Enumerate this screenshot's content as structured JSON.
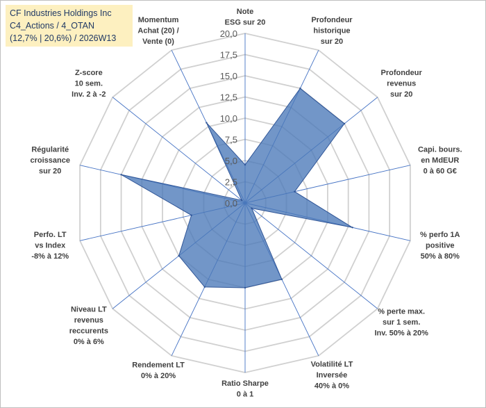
{
  "title": {
    "line1": "CF Industries Holdings Inc",
    "line2": "C4_Actions / 4_OTAN",
    "line3": "(12,7% | 20,6%) / 2026W13"
  },
  "colors": {
    "grid": "#d0d0d0",
    "spoke": "#4472c4",
    "fill": "#4a78b8",
    "stroke": "#2f5597",
    "label": "#404040"
  },
  "chart_data": {
    "type": "radar",
    "rmin": 0,
    "rmax": 20,
    "tick_step": 2.5,
    "tick_labels": [
      "0,0",
      "2,5",
      "5,0",
      "7,5",
      "10,0",
      "12,5",
      "15,0",
      "17,5",
      "20,0"
    ],
    "categories": [
      {
        "lines": [
          "Note",
          "ESG sur 20"
        ]
      },
      {
        "lines": [
          "Profondeur",
          "historique",
          "sur 20"
        ]
      },
      {
        "lines": [
          "Profondeur",
          "revenus",
          "sur 20"
        ]
      },
      {
        "lines": [
          "Capi. bours.",
          "en MdEUR",
          "0 à 60 G€"
        ]
      },
      {
        "lines": [
          "% perfo 1A",
          "positive",
          "50% à 80%"
        ]
      },
      {
        "lines": [
          "% perte max.",
          "sur 1 sem.",
          "Inv. 50% à 20%"
        ]
      },
      {
        "lines": [
          "Volatilité LT",
          "Inversée",
          "40% à 0%"
        ]
      },
      {
        "lines": [
          "Ratio Sharpe",
          "0 à 1"
        ]
      },
      {
        "lines": [
          "Rendement LT",
          "0% à 20%"
        ]
      },
      {
        "lines": [
          "Niveau LT",
          "revenus",
          "reccurents",
          "0% à 6%"
        ]
      },
      {
        "lines": [
          "Perfo. LT",
          "vs Index",
          "-8% à 12%"
        ]
      },
      {
        "lines": [
          "Régularité",
          "croissance",
          "sur 20"
        ]
      },
      {
        "lines": [
          "Z-score",
          "10 sem.",
          "Inv. 2 à -2"
        ]
      },
      {
        "lines": [
          "Momentum",
          "Achat (20) /",
          "Vente (0)"
        ]
      }
    ],
    "series": [
      {
        "name": "CF Industries Holdings Inc",
        "values": [
          4.5,
          15.0,
          15.0,
          6.0,
          13.0,
          1.0,
          10.0,
          10.0,
          11.0,
          10.0,
          6.5,
          15.0,
          0.5,
          10.5
        ]
      }
    ]
  }
}
